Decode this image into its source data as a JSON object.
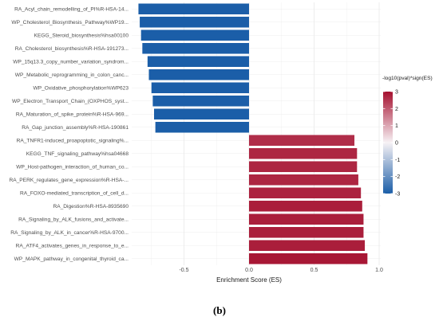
{
  "chart_data": {
    "type": "bar",
    "orientation": "horizontal",
    "categories": [
      "RA_Acyl_chain_remodelling_of_PI%R-HSA-14...",
      "WP_Cholesterol_Biosynthesis_Pathway%WP19...",
      "KEGG_Steroid_biosynthesis%hsa00100",
      "RA_Cholesterol_biosynthesis%R-HSA-191273...",
      "WP_15q13.3_copy_number_variation_syndrom...",
      "WP_Metabolic_reprogramming_in_colon_canc...",
      "WP_Oxidative_phosphorylation%WP623",
      "WP_Electron_Transport_Chain_(OXPHOS_syst...",
      "RA_Maturation_of_spike_protein%R-HSA-969...",
      "RA_Gap_junction_assembly%R-HSA-190861",
      "RA_TNFR1-induced_proapoptotic_signaling%...",
      "KEGG_TNF_signaling_pathway%hsa04668",
      "WP_Host-pathogen_interaction_of_human_co...",
      "RA_PERK_regulates_gene_expression%R-HSA-...",
      "RA_FOXO-mediated_transcription_of_cell_d...",
      "RA_Digestion%R-HSA-8935690",
      "RA_Signaling_by_ALK_fusions_and_activate...",
      "RA_Signaling_by_ALK_in_cancer%R-HSA-9700...",
      "RA_ATF4_activates_genes_in_response_to_e...",
      "WP_MAPK_pathway_in_congenital_thyroid_ca..."
    ],
    "values": [
      -0.85,
      -0.84,
      -0.83,
      -0.82,
      -0.78,
      -0.77,
      -0.75,
      -0.74,
      -0.73,
      -0.72,
      0.81,
      0.83,
      0.83,
      0.84,
      0.86,
      0.87,
      0.88,
      0.88,
      0.89,
      0.91
    ],
    "color_values": [
      -3,
      -3,
      -3,
      -3,
      -3,
      -3,
      -3,
      -3,
      -3,
      -3,
      2.6,
      2.7,
      2.7,
      2.7,
      2.75,
      2.8,
      2.8,
      2.8,
      2.8,
      2.9
    ],
    "xlabel": "Enrichment Score (ES)",
    "xlim": [
      -0.9,
      1.0
    ],
    "xticks": [
      -0.5,
      0.0,
      0.5,
      1.0
    ],
    "colorbar": {
      "title": "-log10(pval)*sign(ES)",
      "ticks": [
        3,
        2,
        1,
        0,
        -1,
        -2,
        -3
      ],
      "range": [
        -3,
        3
      ],
      "colors": {
        "high": "#b2182b",
        "mid": "#f5f5f5",
        "low": "#2166ac"
      }
    },
    "grid": true,
    "caption": "(b)"
  }
}
